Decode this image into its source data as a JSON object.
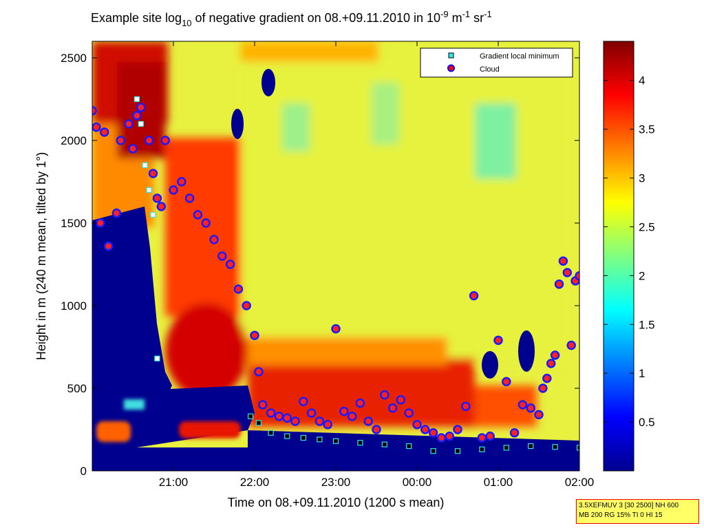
{
  "title": {
    "prefix": "Example site log",
    "sub": "10",
    "middle": " of negative gradient on 08.+09.11.2010 in 10",
    "sup1": "-9",
    "unit1": " m",
    "sup2": "-1",
    "unit2": " sr",
    "sup3": "-1"
  },
  "xlabel": "Time on 08.+09.11.2010 (1200 s mean)",
  "ylabel": "Height in m (240 m mean, tilted by 1°)",
  "info_box": {
    "line1": "3.5XEFMUV 3 [30 2500] NH 600",
    "line2": "MB 200 RG 15% TI 0 HI 15"
  },
  "legend": {
    "items": [
      {
        "label": "Gradient local minimum",
        "marker": "square",
        "color": "#33e6e6"
      },
      {
        "label": "Cloud",
        "marker": "circle",
        "color": "#ff0000"
      }
    ]
  },
  "chart_data": {
    "type": "heatmap",
    "x_axis": {
      "tick_labels": [
        "21:00",
        "22:00",
        "23:00",
        "00:00",
        "01:00",
        "02:00"
      ],
      "range_hours": [
        20.0,
        26.0
      ]
    },
    "y_axis": {
      "tick_labels": [
        "0",
        "500",
        "1000",
        "1500",
        "2000",
        "2500"
      ],
      "tick_values": [
        0,
        500,
        1000,
        1500,
        2000,
        2500
      ],
      "range": [
        0,
        2600
      ]
    },
    "colorbar": {
      "colormap": "jet",
      "range": [
        0,
        4.4
      ],
      "tick_labels": [
        "0.5",
        "1",
        "1.5",
        "2",
        "2.5",
        "3",
        "3.5",
        "4"
      ],
      "tick_values": [
        0.5,
        1,
        1.5,
        2,
        2.5,
        3,
        3.5,
        4
      ]
    },
    "field_regions": [
      {
        "hour_start": 20.0,
        "hour_end": 21.8,
        "alt_start": 300,
        "alt_end": 2600,
        "value": 3.6,
        "description": "strong gradient early layer"
      },
      {
        "hour_start": 21.8,
        "hour_end": 25.7,
        "alt_start": 600,
        "alt_end": 2600,
        "value": 2.4,
        "description": "moderate gradient upper layer"
      },
      {
        "hour_start": 22.0,
        "hour_end": 25.4,
        "alt_start": 150,
        "alt_end": 600,
        "value": 3.7,
        "description": "boundary layer high gradient"
      },
      {
        "hour_start": 20.0,
        "hour_end": 26.0,
        "alt_start": 0,
        "alt_end": 150,
        "value": 0.1,
        "description": "no data"
      }
    ],
    "gradient_minimum_series": {
      "name": "Gradient local minimum",
      "hours": [
        20.55,
        20.6,
        20.65,
        20.7,
        20.75,
        20.8,
        21.95,
        22.05,
        22.2,
        22.4,
        22.6,
        22.8,
        23.0,
        23.3,
        23.6,
        23.9,
        24.2,
        24.5,
        24.8,
        25.1,
        25.4,
        25.7,
        26.0
      ],
      "altitudes": [
        2250,
        2100,
        1850,
        1700,
        1550,
        680,
        330,
        290,
        230,
        210,
        200,
        190,
        180,
        170,
        160,
        150,
        120,
        120,
        130,
        140,
        150,
        145,
        140
      ]
    },
    "cloud_series": {
      "name": "Cloud",
      "hours": [
        20.0,
        20.05,
        20.1,
        20.15,
        20.2,
        20.3,
        20.35,
        20.45,
        20.5,
        20.55,
        20.6,
        20.7,
        20.75,
        20.8,
        20.85,
        20.9,
        21.0,
        21.1,
        21.2,
        21.3,
        21.4,
        21.5,
        21.6,
        21.7,
        21.8,
        21.9,
        22.0,
        22.05,
        22.1,
        22.2,
        22.3,
        22.4,
        22.5,
        22.6,
        22.7,
        22.8,
        22.9,
        23.0,
        23.1,
        23.2,
        23.3,
        23.4,
        23.5,
        23.6,
        23.7,
        23.8,
        23.9,
        24.0,
        24.1,
        24.2,
        24.3,
        24.4,
        24.5,
        24.6,
        24.7,
        24.8,
        24.9,
        25.0,
        25.1,
        25.2,
        25.3,
        25.4,
        25.5,
        25.55,
        25.6,
        25.65,
        25.7,
        25.75,
        25.8,
        25.85,
        25.9,
        25.95,
        26.0
      ],
      "altitudes": [
        2180,
        2080,
        1500,
        2050,
        1360,
        1560,
        2000,
        2100,
        1950,
        2150,
        2200,
        2000,
        1800,
        1650,
        1600,
        2000,
        1700,
        1750,
        1650,
        1550,
        1500,
        1400,
        1300,
        1250,
        1100,
        1000,
        820,
        600,
        400,
        350,
        330,
        320,
        300,
        420,
        350,
        300,
        280,
        860,
        360,
        330,
        410,
        300,
        250,
        460,
        380,
        430,
        350,
        280,
        250,
        230,
        200,
        210,
        250,
        390,
        1060,
        200,
        210,
        790,
        540,
        230,
        400,
        380,
        340,
        500,
        560,
        650,
        700,
        1130,
        1270,
        1200,
        760,
        1150,
        1180
      ]
    }
  }
}
